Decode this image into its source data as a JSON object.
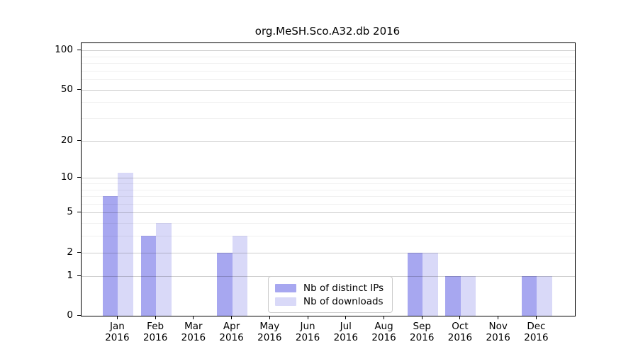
{
  "chart_data": {
    "type": "bar",
    "title": "org.MeSH.Sco.A32.db 2016",
    "year": "2016",
    "categories": [
      "Jan",
      "Feb",
      "Mar",
      "Apr",
      "May",
      "Jun",
      "Jul",
      "Aug",
      "Sep",
      "Oct",
      "Nov",
      "Dec"
    ],
    "series": [
      {
        "name": "Nb of distinct IPs",
        "color": "#a7a7f0",
        "values": [
          7,
          3,
          0,
          2,
          0,
          0,
          0,
          0,
          2,
          1,
          0,
          1
        ]
      },
      {
        "name": "Nb of downloads",
        "color": "#d9d9f8",
        "values": [
          11,
          4,
          0,
          3,
          0,
          0,
          0,
          0,
          2,
          1,
          0,
          1
        ]
      }
    ],
    "y_scale": "log1p",
    "y_ticks": [
      0,
      1,
      2,
      5,
      10,
      20,
      50,
      100
    ],
    "y_minor_gridlines": [
      3,
      4,
      6,
      7,
      8,
      9,
      30,
      40,
      60,
      70,
      80,
      90
    ],
    "ylim": [
      0,
      116
    ],
    "xlabel": "",
    "ylabel": "",
    "grid": true,
    "legend_position": "lower-center",
    "axis_color": "#000000"
  }
}
